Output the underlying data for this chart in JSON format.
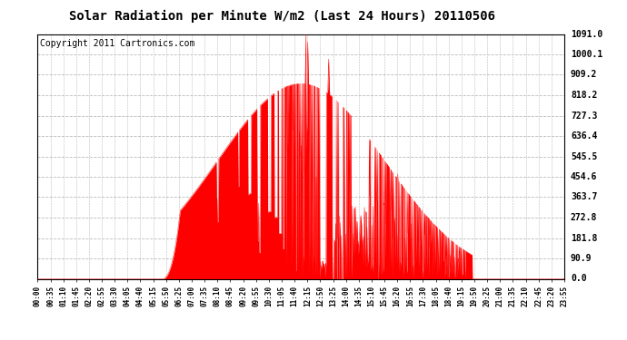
{
  "title": "Solar Radiation per Minute W/m2 (Last 24 Hours) 20110506",
  "copyright": "Copyright 2011 Cartronics.com",
  "background_color": "#ffffff",
  "fill_color": "#ff0000",
  "line_color": "#ff0000",
  "grid_color": "#bbbbbb",
  "y_tick_labels": [
    "0.0",
    "90.9",
    "181.8",
    "272.8",
    "363.7",
    "454.6",
    "545.5",
    "636.4",
    "727.3",
    "818.2",
    "909.2",
    "1000.1",
    "1091.0"
  ],
  "y_tick_values": [
    0.0,
    90.9,
    181.8,
    272.8,
    363.7,
    454.6,
    545.5,
    636.4,
    727.3,
    818.2,
    909.2,
    1000.1,
    1091.0
  ],
  "ymax": 1091.0,
  "ymin": 0.0,
  "x_tick_labels": [
    "00:00",
    "00:35",
    "01:10",
    "01:45",
    "02:20",
    "02:55",
    "03:30",
    "04:05",
    "04:40",
    "05:15",
    "05:50",
    "06:25",
    "07:00",
    "07:35",
    "08:10",
    "08:45",
    "09:20",
    "09:55",
    "10:30",
    "11:05",
    "11:40",
    "12:15",
    "12:50",
    "13:25",
    "14:00",
    "14:35",
    "15:10",
    "15:45",
    "16:20",
    "16:55",
    "17:30",
    "18:05",
    "18:40",
    "19:15",
    "19:50",
    "20:25",
    "21:00",
    "21:35",
    "22:10",
    "22:45",
    "23:20",
    "23:55"
  ],
  "num_points": 1440,
  "title_fontsize": 10,
  "copyright_fontsize": 7,
  "ytick_fontsize": 7,
  "xtick_fontsize": 5.5
}
